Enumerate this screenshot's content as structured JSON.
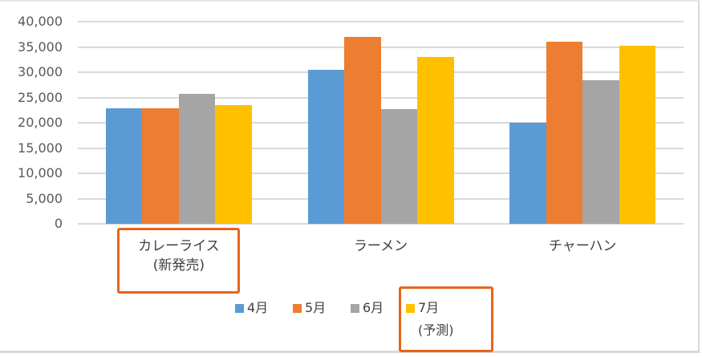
{
  "chart_data": {
    "type": "bar",
    "title": "",
    "xlabel": "",
    "ylabel": "",
    "ylim": [
      0,
      40000
    ],
    "yticks": [
      "0",
      "5,000",
      "10,000",
      "15,000",
      "20,000",
      "25,000",
      "30,000",
      "35,000",
      "40,000"
    ],
    "grid": true,
    "legend_position": "bottom",
    "categories": [
      "カレーライス\n(新発売)",
      "ラーメン",
      "チャーハン"
    ],
    "category_lines": [
      [
        "カレーライス",
        "(新発売)"
      ],
      [
        "ラーメン"
      ],
      [
        "チャーハン"
      ]
    ],
    "series": [
      {
        "name": "4月",
        "color": "#5b9bd5",
        "values": [
          22800,
          30400,
          20000
        ]
      },
      {
        "name": "5月",
        "color": "#ed7d31",
        "values": [
          22800,
          37000,
          36000
        ]
      },
      {
        "name": "6月",
        "color": "#a5a5a5",
        "values": [
          25700,
          22700,
          28400
        ]
      },
      {
        "name": "7月\n(予測)",
        "color": "#ffc000",
        "values": [
          23500,
          33000,
          35200
        ]
      }
    ],
    "annotations": [
      {
        "type": "highlight-box",
        "target": "category-label",
        "text": "カレーライス (新発売)",
        "color": "#e8641b"
      },
      {
        "type": "highlight-box",
        "target": "legend-item",
        "text": "7月 (予測)",
        "color": "#e8641b"
      }
    ]
  },
  "legend": {
    "items": [
      {
        "label": "4月",
        "color": "#5b9bd5"
      },
      {
        "label": "5月",
        "color": "#ed7d31"
      },
      {
        "label": "6月",
        "color": "#a5a5a5"
      },
      {
        "label": "7月",
        "sublabel": "(予測)",
        "color": "#ffc000"
      }
    ]
  }
}
